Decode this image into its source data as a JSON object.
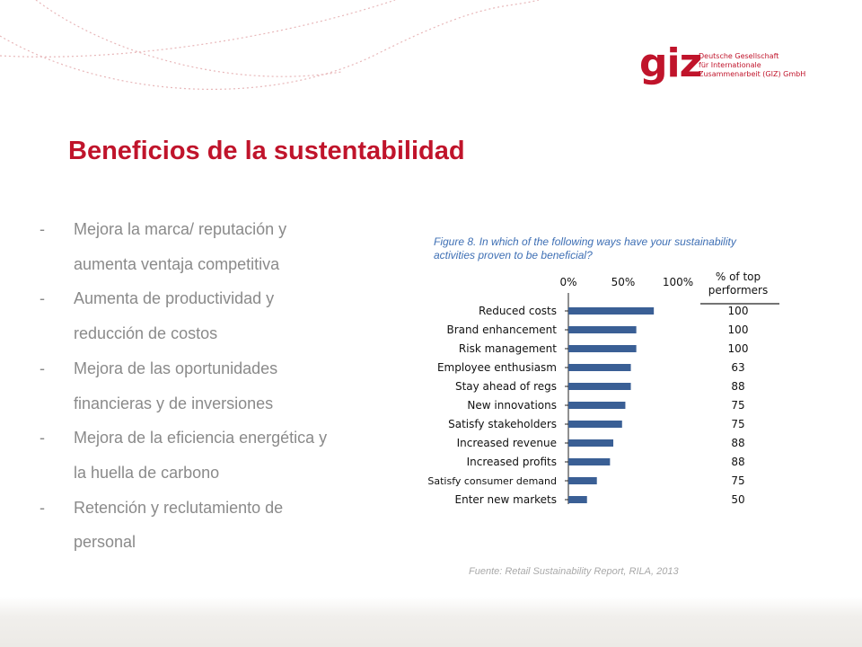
{
  "logo": {
    "mark": "giz",
    "lines": [
      "Deutsche Gesellschaft",
      "für Internationale",
      "Zusammenarbeit (GIZ) GmbH"
    ]
  },
  "title": "Beneficios de la sustentabilidad",
  "bullets": [
    {
      "dash": "-",
      "lines": [
        "Mejora la marca/ reputación y",
        "aumenta ventaja competitiva"
      ]
    },
    {
      "dash": "-",
      "lines": [
        "Aumenta de productividad y",
        "reducción de costos"
      ]
    },
    {
      "dash": "-",
      "lines": [
        "Mejora de las oportunidades",
        "financieras y de inversiones"
      ]
    },
    {
      "dash": "-",
      "lines": [
        "Mejora de la eficiencia energética y",
        "la huella de carbono"
      ]
    },
    {
      "dash": "-",
      "lines": [
        "Retención y reclutamiento de",
        "personal"
      ]
    }
  ],
  "figure_caption": [
    "Figure 8. In which of the following ways have your sustainability",
    "activities proven to be beneficial?"
  ],
  "chart_data": {
    "type": "bar",
    "orientation": "horizontal",
    "categories": [
      "Reduced costs",
      "Brand enhancement",
      "Risk management",
      "Employee enthusiasm",
      "Stay ahead of regs",
      "New innovations",
      "Satisfy stakeholders",
      "Increased revenue",
      "Increased profits",
      "Satisfy consumer demand",
      "Enter new markets"
    ],
    "values": [
      78,
      62,
      62,
      57,
      57,
      52,
      49,
      41,
      38,
      26,
      17
    ],
    "x_ticks": [
      "0%",
      "50%",
      "100%"
    ],
    "xlim": [
      0,
      100
    ],
    "side_column_header": [
      "% of top",
      "performers"
    ],
    "side_column_values": [
      "100",
      "100",
      "100",
      "63",
      "88",
      "75",
      "75",
      "88",
      "88",
      "75",
      "50"
    ],
    "bar_color": "#3a5f95"
  },
  "source": "Fuente: Retail Sustainability Report, RILA, 2013",
  "colors": {
    "accent": "#c0142b",
    "caption": "#3e6fb4",
    "body_text": "#8a8a8a"
  }
}
